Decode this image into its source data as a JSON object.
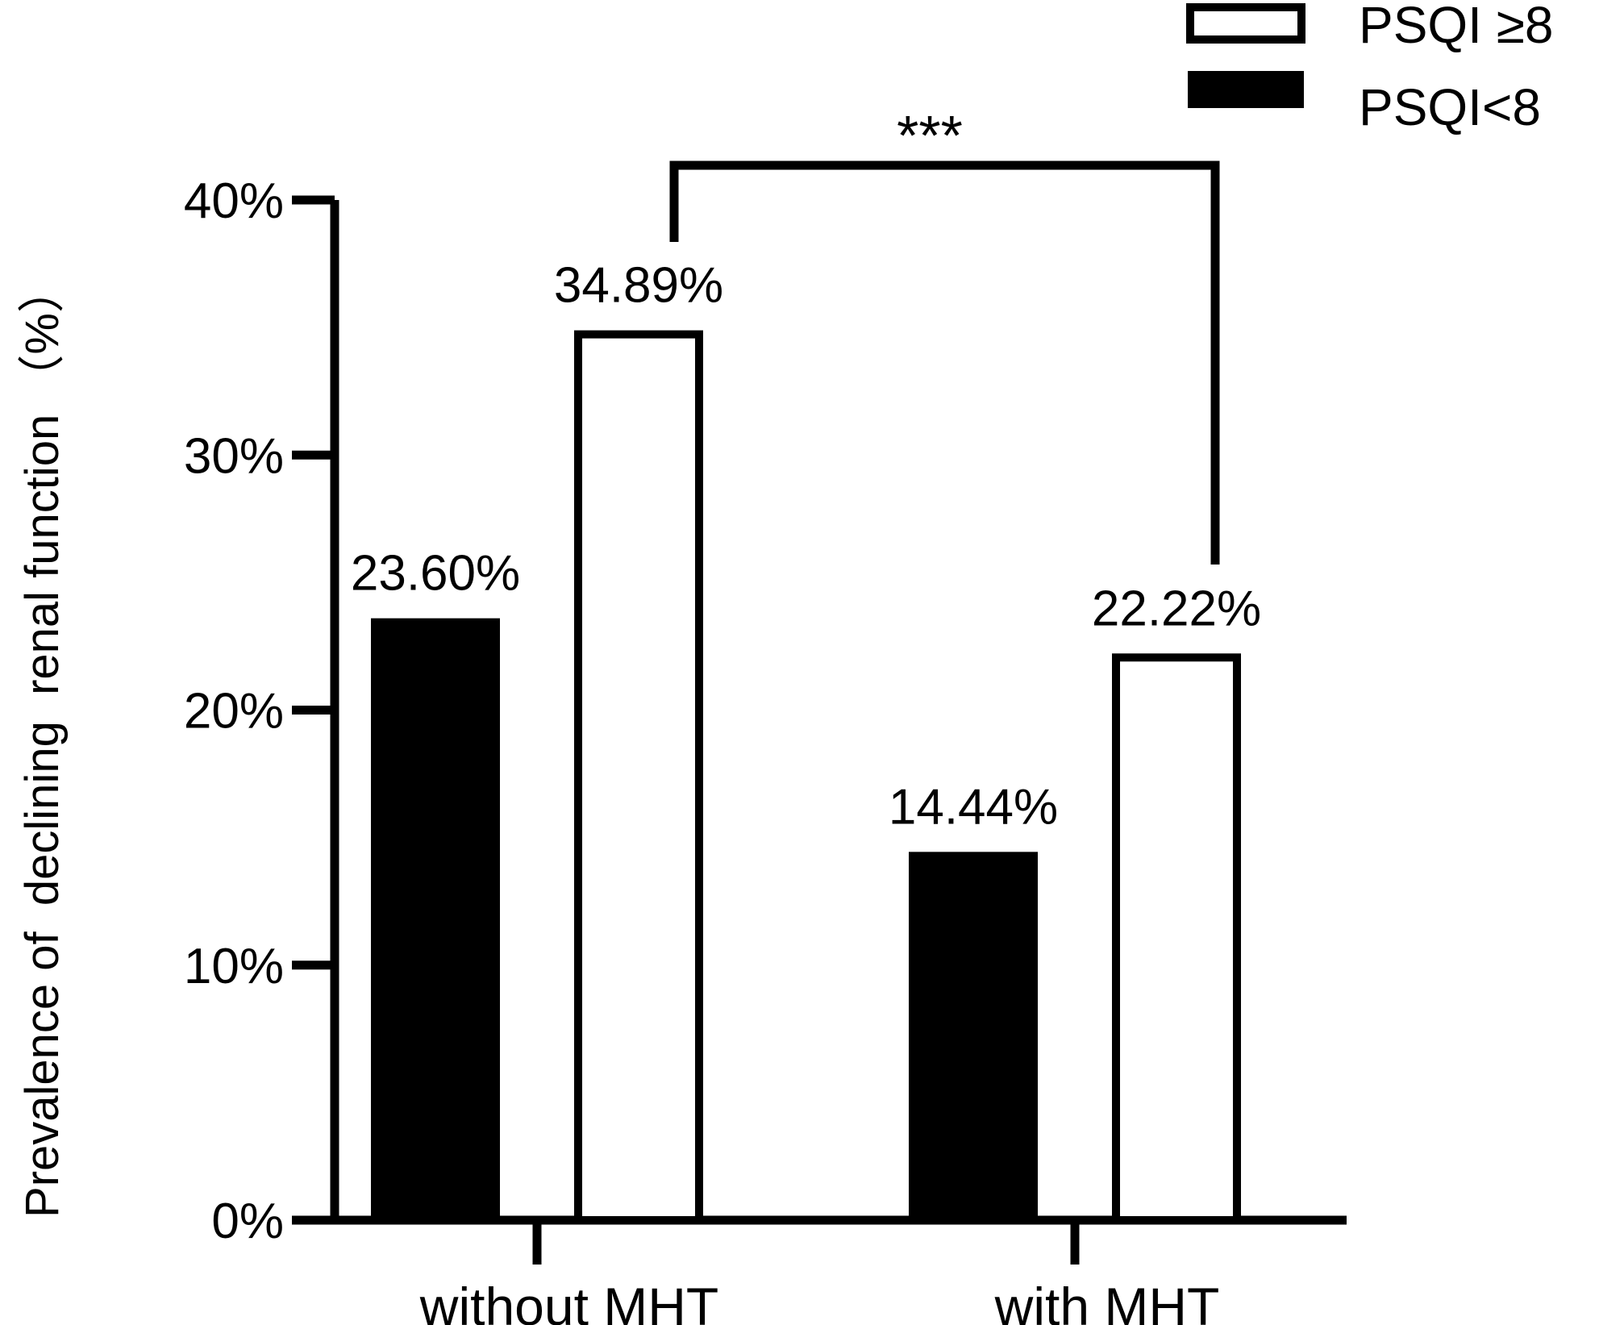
{
  "chart_data": {
    "type": "bar",
    "categories": [
      "without MHT",
      "with MHT"
    ],
    "series": [
      {
        "name": "PSQI<8",
        "values": [
          23.6,
          14.44
        ],
        "labels": [
          "23.60%",
          "14.44%"
        ],
        "fill": "#000000"
      },
      {
        "name": "PSQI ≥8",
        "values": [
          34.89,
          22.22
        ],
        "labels": [
          "34.89%",
          "22.22%"
        ],
        "fill": "#ffffff"
      }
    ],
    "legend": {
      "position": "top-right",
      "entries": [
        {
          "label": "PSQI ≥8",
          "fill": "#ffffff"
        },
        {
          "label": "PSQI<8",
          "fill": "#000000"
        }
      ]
    },
    "ylabel": "Prevalence of  declining  renal function （%）",
    "xlabel": "",
    "ylim": [
      0,
      40
    ],
    "yticks": [
      0,
      10,
      20,
      30,
      40
    ],
    "ytick_labels": [
      "0%",
      "10%",
      "20%",
      "30%",
      "40%"
    ],
    "grid": false,
    "annotations": [
      {
        "text": "***",
        "type": "significance-bracket",
        "from": [
          "without MHT",
          "PSQI ≥8"
        ],
        "to": [
          "with MHT",
          "PSQI ≥8"
        ]
      }
    ],
    "colors": {
      "ink": "#000000",
      "background": "#ffffff"
    }
  }
}
